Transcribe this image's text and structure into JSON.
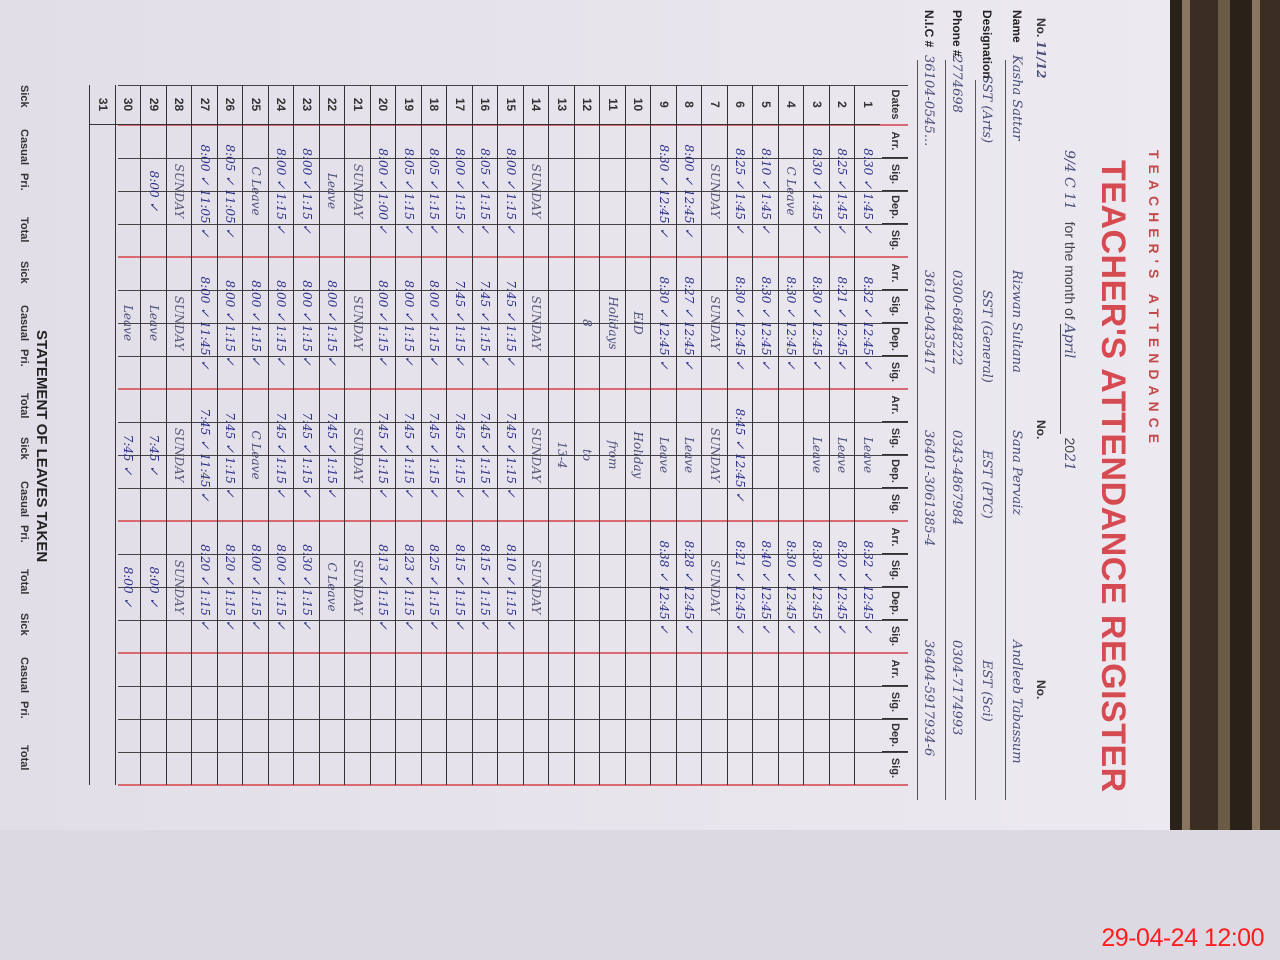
{
  "register": {
    "top_label": "TEACHER'S ATTENDANCE",
    "title": "TEACHER'S ATTENDANCE REGISTER",
    "month_label": "for the month of",
    "month_value": "April",
    "year_prefix": "20",
    "year_value": "21",
    "no_label": "No.",
    "no_value": "11/12",
    "corner_note": "9/4 C 11",
    "labels": {
      "name": "Name",
      "designation": "Designation",
      "phone": "Phone #",
      "nic": "N.I.C #"
    },
    "teachers": [
      {
        "name": "Kasha Sattar",
        "designation": "SST (Arts)",
        "phone": "2774698",
        "nic": "36104-0545..."
      },
      {
        "name": "Rizwan Sultana",
        "designation": "SST (General)",
        "phone": "0300-6848222",
        "nic": "36104-0435417"
      },
      {
        "name": "Sana Pervaiz",
        "designation": "EST (PTC)",
        "phone": "0343-4867984",
        "nic": "36401-3061385-4"
      },
      {
        "name": "Andleeb Tabassum",
        "designation": "EST (Sci)",
        "phone": "0304-7174993",
        "nic": "36404-5917934-6"
      }
    ]
  },
  "table": {
    "headers": [
      "Dates",
      "Arr.",
      "Sig.",
      "Dep.",
      "Sig.",
      "Arr.",
      "Sig.",
      "Dep.",
      "Sig.",
      "Arr.",
      "Sig.",
      "Dep.",
      "Sig.",
      "Arr.",
      "Sig.",
      "Dep.",
      "Sig.",
      "Arr.",
      "Sig.",
      "Dep.",
      "Sig."
    ],
    "rows": [
      {
        "date": "1",
        "g": [
          "8:30 ✓ 1:45 ✓",
          "8:32 ✓ 12:45 ✓",
          "Leave",
          "8:32 ✓ 12:45 ✓",
          ""
        ]
      },
      {
        "date": "2",
        "g": [
          "8:25 ✓ 1:45 ✓",
          "8:21 ✓ 12:45 ✓",
          "Leave",
          "8:20 ✓ 12:45 ✓",
          ""
        ]
      },
      {
        "date": "3",
        "g": [
          "8:30 ✓ 1:45 ✓",
          "8:30 ✓ 12:45 ✓",
          "Leave",
          "8:30 ✓ 12:45 ✓",
          ""
        ]
      },
      {
        "date": "4",
        "g": [
          "C Leave",
          "8:30 ✓ 12:45 ✓",
          "",
          "8:30 ✓ 12:45 ✓",
          ""
        ]
      },
      {
        "date": "5",
        "g": [
          "8:10 ✓ 1:45 ✓",
          "8:30 ✓ 12:45 ✓",
          "",
          "8:40 ✓ 12:45 ✓",
          ""
        ]
      },
      {
        "date": "6",
        "g": [
          "8:25 ✓ 1:45 ✓",
          "8:30 ✓ 12:45 ✓",
          "8:45 ✓ 12:45 ✓",
          "8:21 ✓ 12:45 ✓",
          ""
        ]
      },
      {
        "date": "7",
        "g": [
          "SUNDAY",
          "SUNDAY",
          "SUNDAY",
          "SUNDAY",
          ""
        ]
      },
      {
        "date": "8",
        "g": [
          "8:00 ✓ 12:45 ✓",
          "8:27 ✓ 12:45 ✓",
          "Leave",
          "8:28 ✓ 12:45 ✓",
          ""
        ]
      },
      {
        "date": "9",
        "g": [
          "8:30 ✓ 12:45 ✓",
          "8:30 ✓ 12:45 ✓",
          "Leave",
          "8:38 ✓ 12:45 ✓",
          ""
        ]
      },
      {
        "date": "10",
        "g": [
          "",
          "EID",
          "Holiday",
          "",
          ""
        ]
      },
      {
        "date": "11",
        "g": [
          "",
          "Holidays",
          "from",
          "",
          ""
        ]
      },
      {
        "date": "12",
        "g": [
          "",
          "8",
          "to",
          "",
          ""
        ]
      },
      {
        "date": "13",
        "g": [
          "",
          "",
          "13-4",
          "",
          ""
        ]
      },
      {
        "date": "14",
        "g": [
          "SUNDAY",
          "SUNDAY",
          "SUNDAY",
          "SUNDAY",
          ""
        ]
      },
      {
        "date": "15",
        "g": [
          "8:00 ✓ 1:15 ✓",
          "7:45 ✓ 1:15 ✓",
          "7:45 ✓ 1:15 ✓",
          "8:10 ✓ 1:15 ✓",
          ""
        ]
      },
      {
        "date": "16",
        "g": [
          "8:05 ✓ 1:15 ✓",
          "7:45 ✓ 1:15 ✓",
          "7:45 ✓ 1:15 ✓",
          "8:15 ✓ 1:15 ✓",
          ""
        ]
      },
      {
        "date": "17",
        "g": [
          "8:00 ✓ 1:15 ✓",
          "7:45 ✓ 1:15 ✓",
          "7:45 ✓ 1:15 ✓",
          "8:15 ✓ 1:15 ✓",
          ""
        ]
      },
      {
        "date": "18",
        "g": [
          "8:05 ✓ 1:15 ✓",
          "8:00 ✓ 1:15 ✓",
          "7:45 ✓ 1:15 ✓",
          "8:25 ✓ 1:15 ✓",
          ""
        ]
      },
      {
        "date": "19",
        "g": [
          "8:05 ✓ 1:15 ✓",
          "8:00 ✓ 1:15 ✓",
          "7:45 ✓ 1:15 ✓",
          "8:23 ✓ 1:15 ✓",
          ""
        ]
      },
      {
        "date": "20",
        "g": [
          "8:00 ✓ 1:00 ✓",
          "8:00 ✓ 1:15 ✓",
          "7:45 ✓ 1:15 ✓",
          "8:13 ✓ 1:15 ✓",
          ""
        ]
      },
      {
        "date": "21",
        "g": [
          "SUNDAY",
          "SUNDAY",
          "SUNDAY",
          "SUNDAY",
          ""
        ]
      },
      {
        "date": "22",
        "g": [
          "Leave",
          "8:00 ✓ 1:15 ✓",
          "7:45 ✓ 1:15 ✓",
          "C Leave",
          ""
        ]
      },
      {
        "date": "23",
        "g": [
          "8:00 ✓ 1:15 ✓",
          "8:00 ✓ 1:15 ✓",
          "7:45 ✓ 1:15 ✓",
          "8:30 ✓ 1:15 ✓",
          ""
        ]
      },
      {
        "date": "24",
        "g": [
          "8:00 ✓ 1:15 ✓",
          "8:00 ✓ 1:15 ✓",
          "7:45 ✓ 1:15 ✓",
          "8:00 ✓ 1:15 ✓",
          ""
        ]
      },
      {
        "date": "25",
        "g": [
          "C Leave",
          "8:00 ✓ 1:15 ✓",
          "C Leave",
          "8:00 ✓ 1:15 ✓",
          ""
        ]
      },
      {
        "date": "26",
        "g": [
          "8:05 ✓ 11:05 ✓",
          "8:00 ✓ 1:15 ✓",
          "7:45 ✓ 1:15 ✓",
          "8:20 ✓ 1:15 ✓",
          ""
        ]
      },
      {
        "date": "27",
        "g": [
          "8:00 ✓ 11:05 ✓",
          "8:00 ✓ 11:45 ✓",
          "7:45 ✓ 11:45 ✓",
          "8:20 ✓ 1:15 ✓",
          ""
        ]
      },
      {
        "date": "28",
        "g": [
          "SUNDAY",
          "SUNDAY",
          "SUNDAY",
          "SUNDAY",
          ""
        ]
      },
      {
        "date": "29",
        "g": [
          "8:00 ✓",
          "Leave",
          "7:45 ✓",
          "8:00 ✓",
          ""
        ]
      },
      {
        "date": "30",
        "g": [
          "",
          "Leave",
          "7:45 ✓",
          "8:00 ✓",
          ""
        ]
      },
      {
        "date": "31",
        "g": [
          "",
          "",
          "",
          "",
          ""
        ]
      }
    ]
  },
  "footer": {
    "title": "STATEMENT OF LEAVES TAKEN",
    "headers": [
      "Sick",
      "Casual",
      "Pri.",
      "Total",
      "Sick",
      "Casual",
      "Pri.",
      "Total",
      "Sick",
      "Casual",
      "Pri.",
      "Total",
      "Sick",
      "Casual",
      "Pri.",
      "Total"
    ]
  },
  "timestamp": "29-04-24 12:00"
}
